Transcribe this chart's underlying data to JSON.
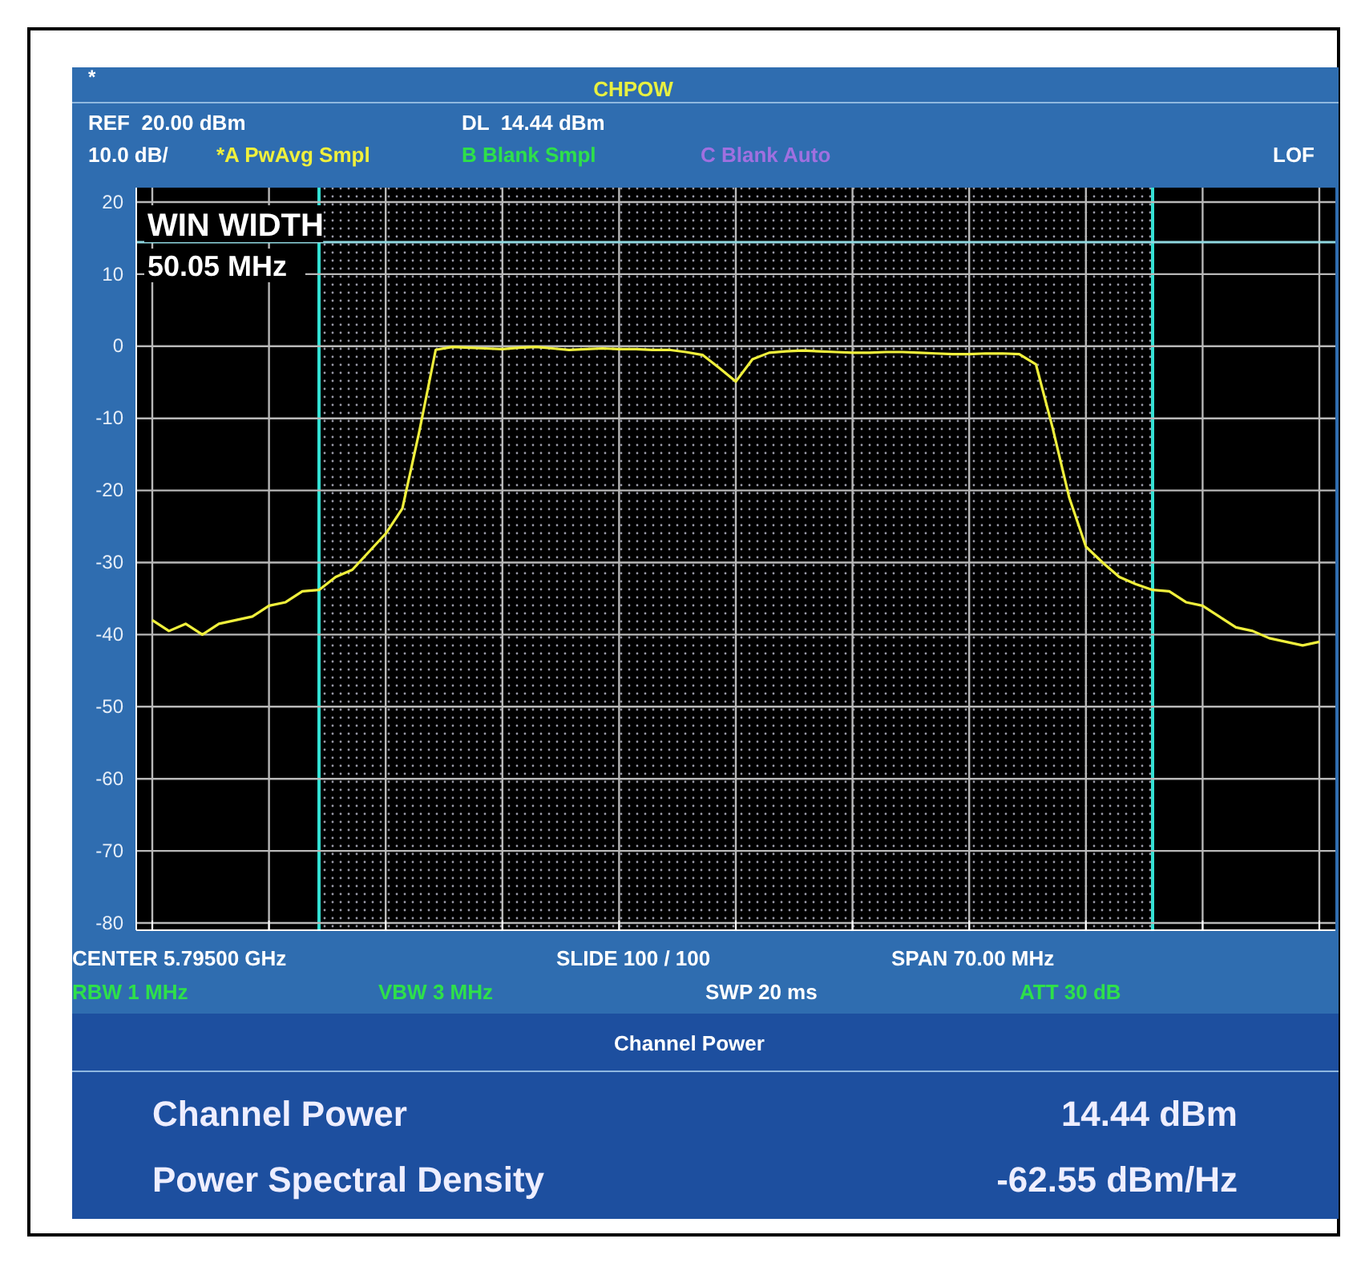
{
  "chart_data": {
    "type": "line",
    "title": "CHPOW",
    "categories": [
      null,
      null,
      null,
      null,
      null,
      null,
      null,
      null,
      null,
      null,
      null,
      null,
      null,
      null,
      null,
      null,
      null,
      null,
      null,
      null,
      null,
      null,
      null,
      null,
      null,
      null,
      null,
      null,
      null,
      null,
      null,
      null,
      null,
      null,
      null,
      null,
      null,
      null,
      null,
      null,
      null,
      null,
      null,
      null,
      null,
      null,
      null,
      null,
      null,
      null,
      null,
      null,
      null,
      null,
      null,
      null,
      null,
      null,
      null,
      null,
      null,
      null,
      null,
      null,
      null,
      null,
      null,
      null,
      null,
      null,
      null
    ],
    "ylim": [
      -81,
      22
    ],
    "yticks": [
      20,
      10,
      0,
      -10,
      -20,
      -30,
      -40,
      -50,
      -60,
      -70,
      -80
    ],
    "tick_labels": "y",
    "grid": true,
    "line_style": "solid",
    "series": [
      {
        "name": "*A PwAvg Smpl",
        "color": "#f0f03c",
        "values": [
          -38,
          -39.5,
          -38.5,
          -40,
          -38.5,
          -38,
          -37.5,
          -36,
          -35.5,
          -34,
          -33.8,
          -32,
          -31,
          -28.5,
          -26,
          -22.5,
          -12,
          -0.5,
          -0.1,
          -0.2,
          -0.3,
          -0.4,
          -0.2,
          -0.1,
          -0.3,
          -0.5,
          -0.4,
          -0.3,
          -0.4,
          -0.4,
          -0.5,
          -0.5,
          -0.8,
          -1.2,
          -3,
          -4.9,
          -1.8,
          -0.9,
          -0.7,
          -0.6,
          -0.7,
          -0.8,
          -0.9,
          -0.9,
          -0.8,
          -0.8,
          -0.9,
          -1,
          -1.1,
          -1.1,
          -1,
          -1,
          -1.1,
          -2.5,
          -11.3,
          -21,
          -27.8,
          -30,
          -32,
          -33,
          -33.8,
          -34,
          -35.5,
          -36,
          -37.5,
          -39,
          -39.5,
          -40.5,
          -41,
          -41.5,
          -41
        ]
      }
    ],
    "ref_lines": [
      {
        "axis": "y",
        "value": 14.44,
        "label": null,
        "color": "#8fd8e0"
      }
    ],
    "annotations": [
      "*",
      "REF  20.00 dBm",
      "DL  14.44 dBm",
      "10.0 dB/",
      "B Blank Smpl",
      "C Blank Auto",
      "LOF",
      "WIN WIDTH",
      "50.05 MHz",
      "CENTER 5.79500 GHz",
      "SLIDE 100 / 100",
      "SPAN 70.00 MHz",
      "RBW 1 MHz",
      "VBW 3 MHz",
      "SWP 20 ms",
      "ATT 30 dB",
      "Channel Power",
      "Channel Power",
      "14.44 dBm",
      "Power Spectral Density",
      "-62.55 dBm/Hz"
    ]
  }
}
